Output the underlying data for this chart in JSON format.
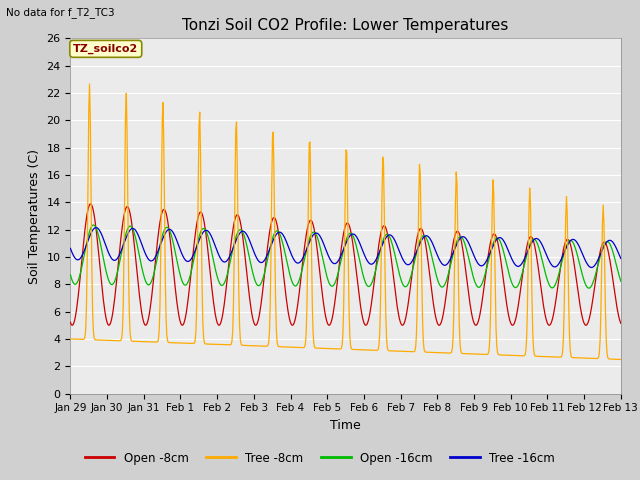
{
  "title": "Tonzi Soil CO2 Profile: Lower Temperatures",
  "top_left_text": "No data for f_T2_TC3",
  "watermark_text": "TZ_soilco2",
  "xlabel": "Time",
  "ylabel": "Soil Temperatures (C)",
  "ylim": [
    0,
    26
  ],
  "yticks": [
    0,
    2,
    4,
    6,
    8,
    10,
    12,
    14,
    16,
    18,
    20,
    22,
    24,
    26
  ],
  "xtick_labels": [
    "Jan 29",
    "Jan 30",
    "Jan 31",
    "Feb 1",
    "Feb 2",
    "Feb 3",
    "Feb 4",
    "Feb 5",
    "Feb 6",
    "Feb 7",
    "Feb 8",
    "Feb 9",
    "Feb 10",
    "Feb 11",
    "Feb 12",
    "Feb 13"
  ],
  "fig_bg_color": "#d0d0d0",
  "plot_bg_color": "#ebebeb",
  "line_colors": {
    "open_8": "#cc0000",
    "tree_8": "#ffaa00",
    "open_16": "#00bb00",
    "tree_16": "#0000cc"
  },
  "legend_labels": [
    "Open -8cm",
    "Tree -8cm",
    "Open -16cm",
    "Tree -16cm"
  ]
}
